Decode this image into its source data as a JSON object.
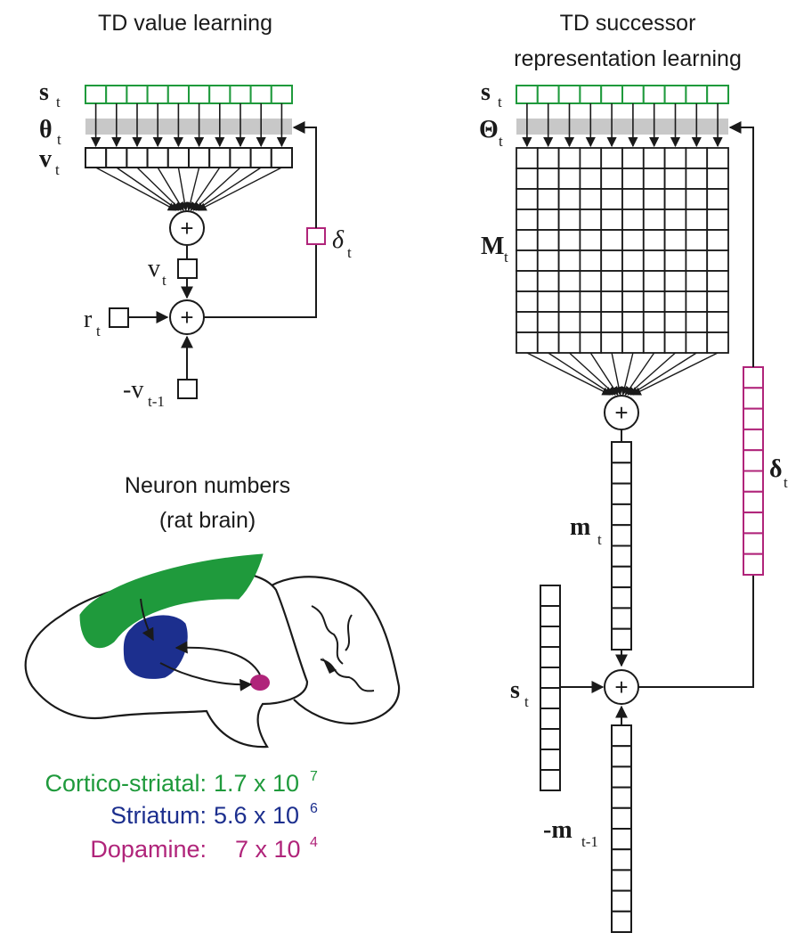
{
  "colors": {
    "green": "#1f9a3c",
    "blue": "#1c2f8e",
    "magenta": "#b0247a",
    "gray": "#c8c8c8",
    "ink": "#1a1a1a"
  },
  "left_panel": {
    "title": "TD value learning",
    "labels": {
      "s": "s",
      "s_sub": "t",
      "theta": "θ",
      "theta_sub": "t",
      "v": "v",
      "v_sub": "t",
      "vt": "v",
      "vt_sub": "t",
      "delta": "δ",
      "delta_sub": "t",
      "r": "r",
      "r_sub": "t",
      "vprev": "-v",
      "vprev_sub": "t-1"
    }
  },
  "right_panel": {
    "title_line1": "TD successor",
    "title_line2": "representation learning",
    "labels": {
      "s": "s",
      "s_sub": "t",
      "Theta": "Θ",
      "Theta_sub": "t",
      "M": "M",
      "M_sub": "t",
      "m": "m",
      "m_sub": "t",
      "delta": "δ",
      "delta_sub": "t",
      "s2": "s",
      "s2_sub": "t",
      "mprev": "-m",
      "mprev_sub": "t-1"
    }
  },
  "neurons": {
    "title_line1": "Neuron numbers",
    "title_line2": "(rat brain)",
    "rows": [
      {
        "label": "Cortico-striatal:",
        "value": "1.7 x 10",
        "exp": "7"
      },
      {
        "label": "Striatum:",
        "value": "5.6 x 10",
        "exp": "6"
      },
      {
        "label": "Dopamine:",
        "value": "7 x 10",
        "exp": "4"
      }
    ]
  },
  "plus_symbol": "+"
}
